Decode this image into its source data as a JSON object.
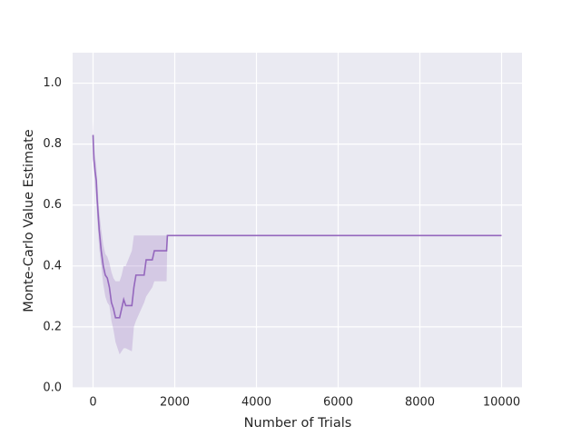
{
  "chart_data": {
    "type": "line",
    "x_label": "Number of Trials",
    "y_label": "Monte-Carlo Value Estimate",
    "x": [
      0,
      20,
      50,
      80,
      100,
      150,
      200,
      250,
      300,
      350,
      400,
      450,
      500,
      550,
      650,
      700,
      750,
      800,
      950,
      1000,
      1050,
      1250,
      1300,
      1450,
      1500,
      1800,
      1820,
      10000
    ],
    "series": [
      {
        "color": "#9467bd",
        "values": [
          0.83,
          0.75,
          0.71,
          0.68,
          0.62,
          0.52,
          0.45,
          0.4,
          0.37,
          0.36,
          0.33,
          0.28,
          0.26,
          0.23,
          0.23,
          0.26,
          0.29,
          0.27,
          0.27,
          0.33,
          0.37,
          0.37,
          0.42,
          0.42,
          0.45,
          0.45,
          0.5,
          0.5
        ],
        "lower": [
          0.78,
          0.72,
          0.66,
          0.62,
          0.56,
          0.46,
          0.4,
          0.34,
          0.3,
          0.28,
          0.27,
          0.22,
          0.19,
          0.15,
          0.11,
          0.12,
          0.13,
          0.13,
          0.12,
          0.2,
          0.22,
          0.28,
          0.3,
          0.33,
          0.35,
          0.35,
          0.5,
          0.5
        ],
        "upper": [
          0.88,
          0.8,
          0.76,
          0.73,
          0.68,
          0.58,
          0.52,
          0.47,
          0.44,
          0.43,
          0.41,
          0.38,
          0.36,
          0.35,
          0.35,
          0.37,
          0.4,
          0.4,
          0.45,
          0.5,
          0.5,
          0.5,
          0.5,
          0.5,
          0.5,
          0.5,
          0.5,
          0.5
        ]
      }
    ],
    "xlim": [
      -500,
      10500
    ],
    "xticks": [
      0,
      2000,
      4000,
      6000,
      8000,
      10000
    ],
    "ylim": [
      0,
      1.1
    ],
    "yticks": [
      {
        "value": 0,
        "label": "0.0"
      },
      0.2,
      0.4,
      0.6,
      0.8,
      {
        "value": 1,
        "label": "1.0"
      }
    ],
    "grid": true
  }
}
